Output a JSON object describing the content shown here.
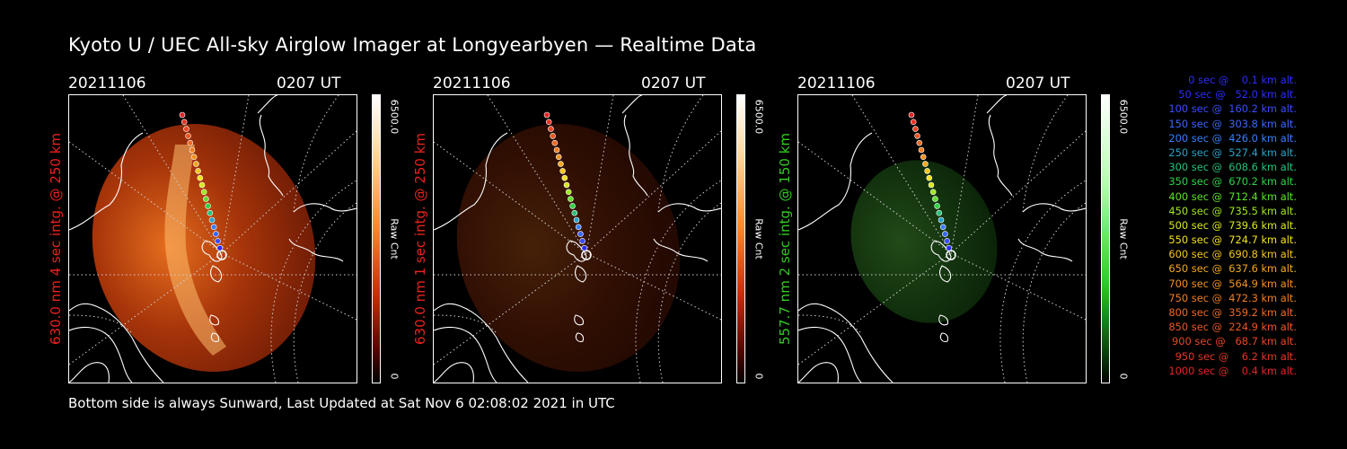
{
  "title": "Kyoto U / UEC All-sky Airglow Imager at Longyearbyen — Realtime Data",
  "footer": "Bottom side is always Sunward, Last Updated at Sat Nov  6 02:08:02 2021 in UTC",
  "panels": [
    {
      "date": "20211106",
      "time": "0207 UT",
      "ylabel": "630.0 nm 4 sec intg. @ 250 km",
      "label_color": "#e8231c",
      "cb_max": "6500.0",
      "cb_min": "0",
      "cb_unit": "Raw Cnt",
      "colormap": "red",
      "intensity": 1.0
    },
    {
      "date": "20211106",
      "time": "0207 UT",
      "ylabel": "630.0 nm 1 sec intg. @ 250 km",
      "label_color": "#e8231c",
      "cb_max": "6500.0",
      "cb_min": "0",
      "cb_unit": "Raw Cnt",
      "colormap": "red",
      "intensity": 0.3
    },
    {
      "date": "20211106",
      "time": "0207 UT",
      "ylabel": "557.7 nm 2 sec intg. @ 150 km",
      "label_color": "#33cc22",
      "cb_max": "6500.0",
      "cb_min": "0",
      "cb_unit": "Raw Cnt",
      "colormap": "green",
      "intensity": 0.55
    }
  ],
  "legend": [
    {
      "text": "   0 sec @    0.1 km alt.",
      "color": "#2b2bff"
    },
    {
      "text": "  50 sec @   52.0 km alt.",
      "color": "#2b2bff"
    },
    {
      "text": " 100 sec @  160.2 km alt.",
      "color": "#3a4cff"
    },
    {
      "text": " 150 sec @  303.8 km alt.",
      "color": "#3a66ff"
    },
    {
      "text": " 200 sec @  426.0 km alt.",
      "color": "#3a7fff"
    },
    {
      "text": " 250 sec @  527.4 km alt.",
      "color": "#2aa0c8"
    },
    {
      "text": " 300 sec @  608.6 km alt.",
      "color": "#27c27a"
    },
    {
      "text": " 350 sec @  670.2 km alt.",
      "color": "#2fd246"
    },
    {
      "text": " 400 sec @  712.4 km alt.",
      "color": "#5fe02a"
    },
    {
      "text": " 450 sec @  735.5 km alt.",
      "color": "#9fe81f"
    },
    {
      "text": " 500 sec @  739.6 km alt.",
      "color": "#d8e81e"
    },
    {
      "text": " 550 sec @  724.7 km alt.",
      "color": "#f2e21e"
    },
    {
      "text": " 600 sec @  690.8 km alt.",
      "color": "#f4c61d"
    },
    {
      "text": " 650 sec @  637.6 km alt.",
      "color": "#f2a81e"
    },
    {
      "text": " 700 sec @  564.9 km alt.",
      "color": "#f0921f"
    },
    {
      "text": " 750 sec @  472.3 km alt.",
      "color": "#ee7e21"
    },
    {
      "text": " 800 sec @  359.2 km alt.",
      "color": "#ec6a22"
    },
    {
      "text": " 850 sec @  224.9 km alt.",
      "color": "#ea5723"
    },
    {
      "text": " 900 sec @   68.7 km alt.",
      "color": "#e84524"
    },
    {
      "text": " 950 sec @    6.2 km alt.",
      "color": "#e63425"
    },
    {
      "text": "1000 sec @    0.4 km alt.",
      "color": "#e42426"
    }
  ]
}
